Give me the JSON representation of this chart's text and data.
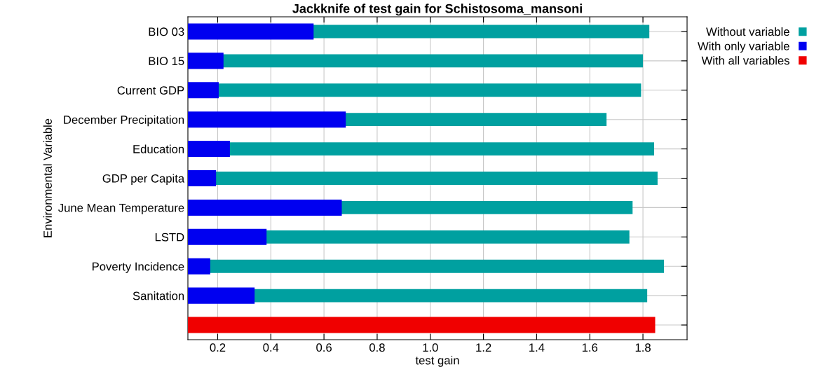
{
  "chart_data": {
    "type": "bar",
    "orientation": "horizontal",
    "title": "Jackknife of test gain for Schistosoma_mansoni",
    "xlabel": "test gain",
    "ylabel": "Environmental Variable",
    "categories": [
      "BIO 03",
      "BIO 15",
      "Current GDP",
      "December Precipitation",
      "Education",
      "GDP per Capita",
      "June Mean Temperature",
      "LSTD",
      "Poverty Incidence",
      "Sanitation",
      null
    ],
    "series": [
      {
        "name": "Without variable",
        "color": "#00a0a0",
        "values": [
          1.824,
          1.8,
          1.793,
          1.663,
          1.842,
          1.855,
          1.761,
          1.749,
          1.879,
          1.816,
          null
        ]
      },
      {
        "name": "With only variable",
        "color": "#0000f0",
        "values": [
          0.561,
          0.222,
          0.204,
          0.682,
          0.246,
          0.194,
          0.667,
          0.384,
          0.172,
          0.339,
          null
        ]
      },
      {
        "name": "With all variables",
        "color": "#f00000",
        "values": [
          null,
          null,
          null,
          null,
          null,
          null,
          null,
          null,
          null,
          null,
          1.846
        ]
      }
    ],
    "xlim": [
      0.088,
      1.966
    ],
    "xticks": [
      {
        "value": 0.2,
        "label": "0.2"
      },
      {
        "value": 0.4,
        "label": "0.4"
      },
      {
        "value": 0.6,
        "label": "0.6"
      },
      {
        "value": 0.8,
        "label": "0.8"
      },
      {
        "value": 1.0,
        "label": "1.0"
      },
      {
        "value": 1.2,
        "label": "1.2"
      },
      {
        "value": 1.4,
        "label": "1.4"
      },
      {
        "value": 1.6,
        "label": "1.6"
      },
      {
        "value": 1.8,
        "label": "1.8"
      }
    ],
    "grid": true,
    "legend": "top right"
  }
}
